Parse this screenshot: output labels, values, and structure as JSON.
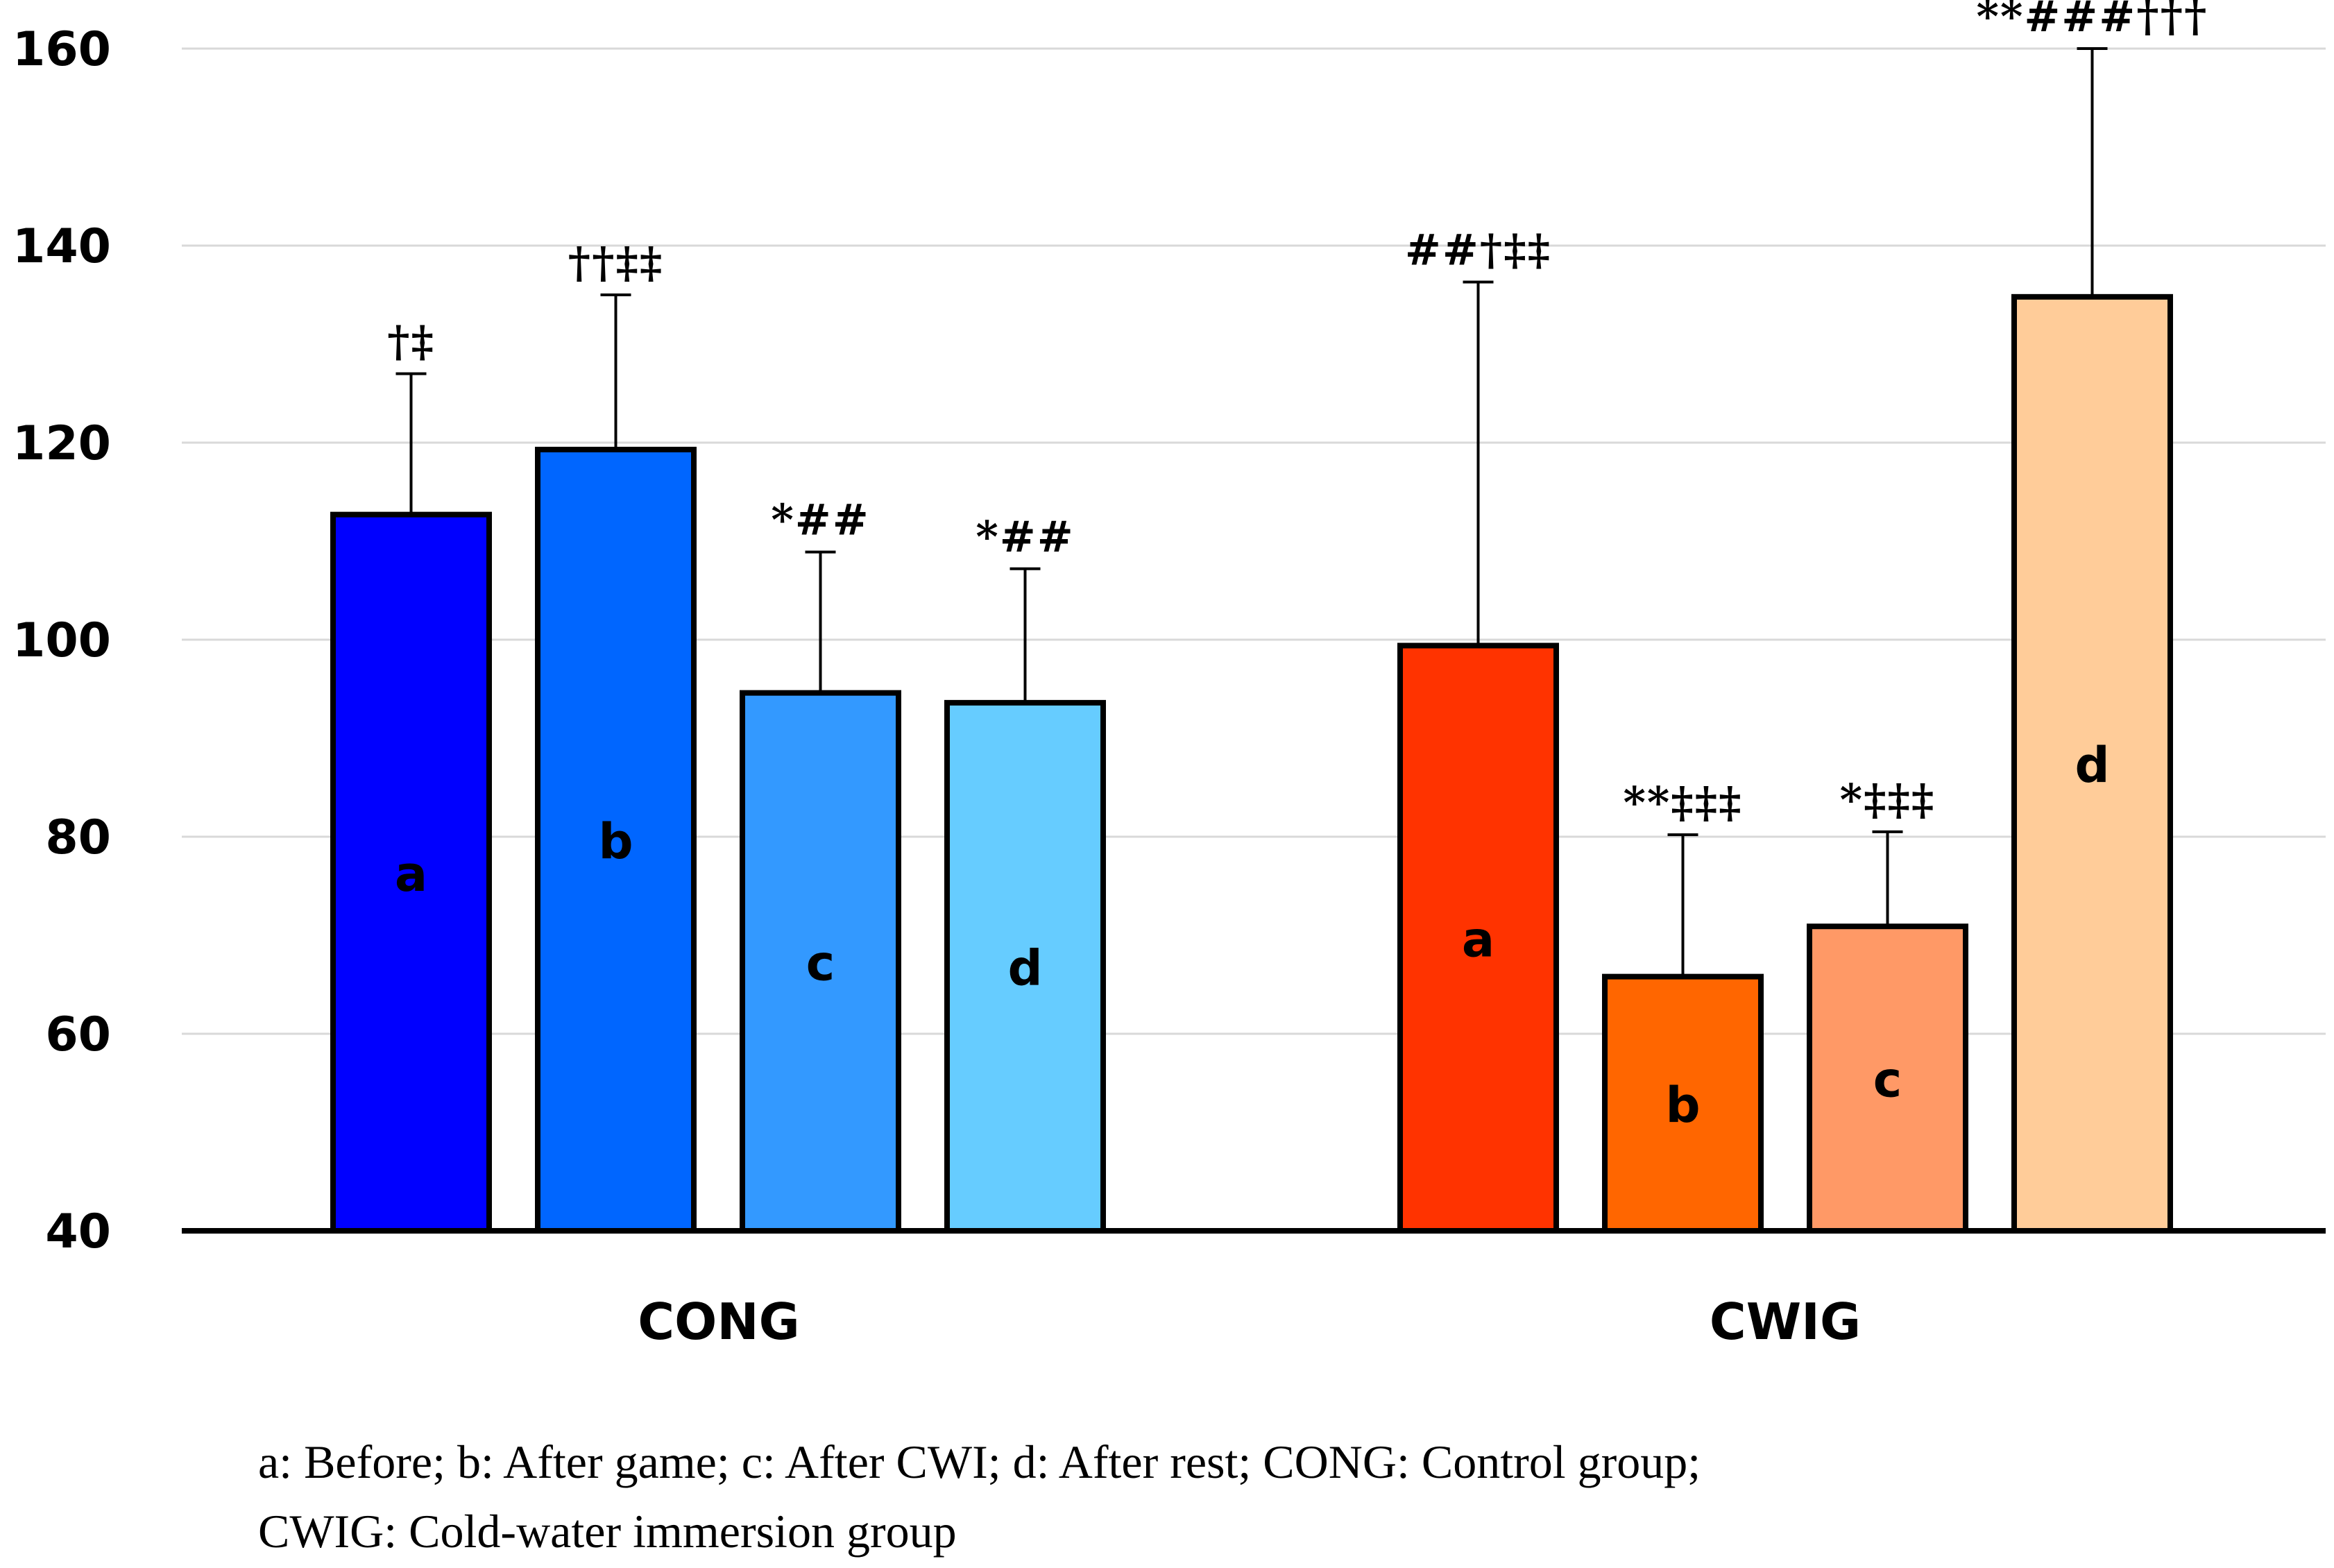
{
  "chart_data": {
    "type": "bar",
    "title": "",
    "xlabel": "",
    "ylabel": "",
    "ylim": [
      40,
      160
    ],
    "yticks": [
      40,
      60,
      80,
      100,
      120,
      140,
      160
    ],
    "grid": true,
    "groups": [
      {
        "name": "CONG",
        "bars": [
          {
            "label": "a",
            "value": 112.7,
            "error": 14.3,
            "annotation": "†‡",
            "color": "#0000ff"
          },
          {
            "label": "b",
            "value": 119.3,
            "error": 15.7,
            "annotation": "††‡‡",
            "color": "#0066ff"
          },
          {
            "label": "c",
            "value": 94.6,
            "error": 14.3,
            "annotation": "*##",
            "color": "#3399ff"
          },
          {
            "label": "d",
            "value": 93.6,
            "error": 13.6,
            "annotation": "*##",
            "color": "#66ccff"
          }
        ]
      },
      {
        "name": "CWIG",
        "bars": [
          {
            "label": "a",
            "value": 99.4,
            "error": 36.9,
            "annotation": "##†‡‡",
            "color": "#ff3300"
          },
          {
            "label": "b",
            "value": 65.8,
            "error": 14.4,
            "annotation": "**‡‡‡",
            "color": "#ff6600"
          },
          {
            "label": "c",
            "value": 70.9,
            "error": 9.6,
            "annotation": "*‡‡‡",
            "color": "#ff9966"
          },
          {
            "label": "d",
            "value": 134.8,
            "error": 25.2,
            "annotation": "**###†††",
            "color": "#ffcc99"
          }
        ]
      }
    ]
  },
  "caption": {
    "line1": "a: Before; b: After game; c:  After CWI; d: After rest; CONG: Control group;",
    "line2": "CWIG: Cold-water  immersion  group"
  }
}
